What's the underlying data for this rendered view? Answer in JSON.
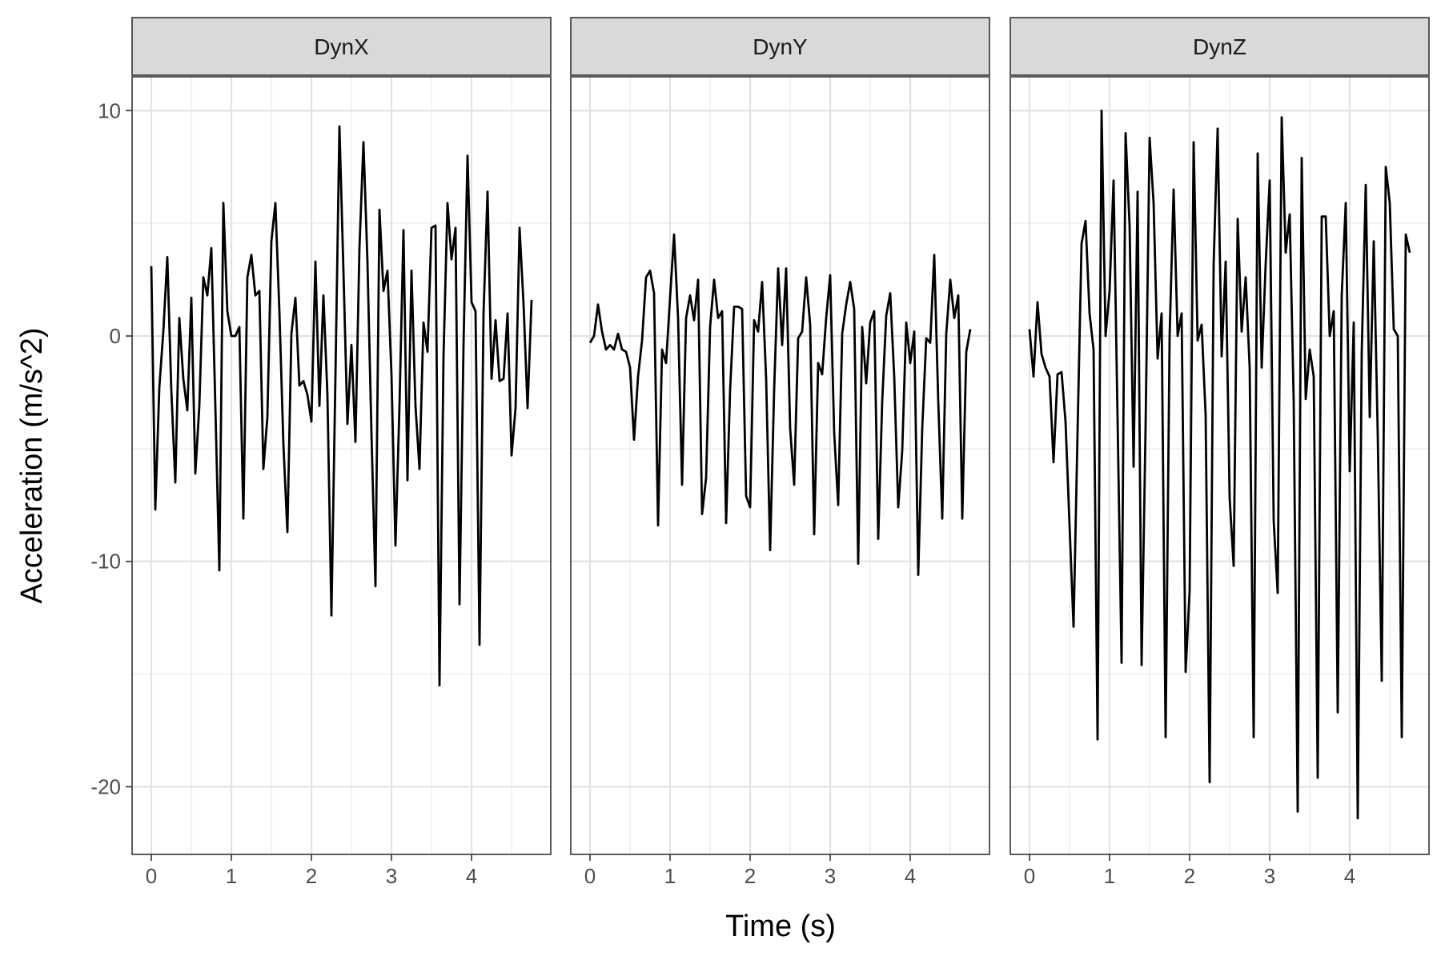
{
  "chart_data": {
    "type": "line",
    "xlabel": "Time (s)",
    "ylabel": "Acceleration (m/s^2)",
    "xlim": [
      -0.24,
      4.99
    ],
    "ylim": [
      -23.0,
      11.5
    ],
    "x_ticks": [
      0,
      1,
      2,
      3,
      4
    ],
    "y_ticks": [
      10,
      0,
      -10,
      -20
    ],
    "grid": true,
    "line_color": "#000000",
    "panels": [
      {
        "name": "DynX",
        "x": [
          0.0,
          0.05,
          0.1,
          0.15,
          0.2,
          0.25,
          0.3,
          0.35,
          0.4,
          0.45,
          0.5,
          0.55,
          0.6,
          0.65,
          0.7,
          0.75,
          0.8,
          0.85,
          0.9,
          0.95,
          1.0,
          1.05,
          1.1,
          1.15,
          1.2,
          1.25,
          1.3,
          1.35,
          1.4,
          1.45,
          1.5,
          1.55,
          1.6,
          1.65,
          1.7,
          1.75,
          1.8,
          1.85,
          1.9,
          1.95,
          2.0,
          2.05,
          2.1,
          2.15,
          2.2,
          2.25,
          2.3,
          2.35,
          2.4,
          2.45,
          2.5,
          2.55,
          2.6,
          2.65,
          2.7,
          2.75,
          2.8,
          2.85,
          2.9,
          2.95,
          3.0,
          3.05,
          3.1,
          3.15,
          3.2,
          3.25,
          3.3,
          3.35,
          3.4,
          3.45,
          3.5,
          3.55,
          3.6,
          3.65,
          3.7,
          3.75,
          3.8,
          3.85,
          3.9,
          3.95,
          4.0,
          4.05,
          4.1,
          4.15,
          4.2,
          4.25,
          4.3,
          4.35,
          4.4,
          4.45,
          4.5,
          4.55,
          4.6,
          4.65,
          4.7,
          4.75
        ],
        "y": [
          3.1,
          -7.7,
          -2.3,
          0.2,
          3.5,
          -2.4,
          -6.5,
          0.8,
          -1.9,
          -3.3,
          1.7,
          -6.1,
          -3.1,
          2.6,
          1.8,
          3.9,
          -3.1,
          -10.4,
          5.9,
          1.1,
          0.0,
          0.0,
          0.4,
          -8.1,
          2.6,
          3.6,
          1.8,
          2.0,
          -5.9,
          -3.6,
          4.2,
          5.9,
          1.1,
          -4.8,
          -8.7,
          0.1,
          1.7,
          -2.2,
          -2.0,
          -2.6,
          -3.8,
          3.3,
          -3.1,
          1.8,
          -2.6,
          -12.4,
          -1.8,
          9.3,
          2.9,
          -3.9,
          -0.4,
          -4.7,
          3.9,
          8.6,
          3.3,
          -4.3,
          -11.1,
          5.6,
          2.0,
          2.9,
          -1.7,
          -9.3,
          -3.1,
          4.7,
          -6.4,
          2.9,
          -3.1,
          -5.9,
          0.6,
          -0.7,
          4.8,
          4.9,
          -15.5,
          -0.9,
          5.9,
          3.4,
          4.8,
          -11.9,
          -0.4,
          8.0,
          1.5,
          1.1,
          -13.7,
          1.0,
          6.4,
          -1.9,
          0.7,
          -2.0,
          -1.9,
          1.0,
          -5.3,
          -3.2,
          4.8,
          1.4,
          -3.2,
          1.6
        ]
      },
      {
        "name": "DynY",
        "x": [
          0.0,
          0.05,
          0.1,
          0.15,
          0.2,
          0.25,
          0.3,
          0.35,
          0.4,
          0.45,
          0.5,
          0.55,
          0.6,
          0.65,
          0.7,
          0.75,
          0.8,
          0.85,
          0.9,
          0.95,
          1.0,
          1.05,
          1.1,
          1.15,
          1.2,
          1.25,
          1.3,
          1.35,
          1.4,
          1.45,
          1.5,
          1.55,
          1.6,
          1.65,
          1.7,
          1.75,
          1.8,
          1.85,
          1.9,
          1.95,
          2.0,
          2.05,
          2.1,
          2.15,
          2.2,
          2.25,
          2.3,
          2.35,
          2.4,
          2.45,
          2.5,
          2.55,
          2.6,
          2.65,
          2.7,
          2.75,
          2.8,
          2.85,
          2.9,
          2.95,
          3.0,
          3.05,
          3.1,
          3.15,
          3.2,
          3.25,
          3.3,
          3.35,
          3.4,
          3.45,
          3.5,
          3.55,
          3.6,
          3.65,
          3.7,
          3.75,
          3.8,
          3.85,
          3.9,
          3.95,
          4.0,
          4.05,
          4.1,
          4.15,
          4.2,
          4.25,
          4.3,
          4.35,
          4.4,
          4.45,
          4.5,
          4.55,
          4.6,
          4.65,
          4.7,
          4.75
        ],
        "y": [
          -0.3,
          0.0,
          1.4,
          0.2,
          -0.6,
          -0.4,
          -0.6,
          0.1,
          -0.6,
          -0.7,
          -1.4,
          -4.6,
          -1.8,
          -0.2,
          2.6,
          2.9,
          1.9,
          -8.4,
          -0.6,
          -1.2,
          1.7,
          4.5,
          0.8,
          -6.6,
          0.8,
          1.8,
          0.7,
          2.5,
          -7.9,
          -6.3,
          0.4,
          2.5,
          0.8,
          1.1,
          -8.3,
          -2.4,
          1.3,
          1.3,
          1.2,
          -7.1,
          -7.6,
          0.7,
          0.2,
          2.4,
          -1.9,
          -9.5,
          -2.4,
          3.0,
          -0.4,
          3.0,
          -4.1,
          -6.6,
          -0.1,
          0.2,
          2.6,
          0.5,
          -8.8,
          -1.2,
          -1.7,
          0.8,
          2.7,
          -4.3,
          -7.5,
          0.1,
          1.4,
          2.4,
          1.2,
          -10.1,
          0.4,
          -2.1,
          0.6,
          1.1,
          -9.0,
          -2.9,
          0.9,
          1.9,
          -1.8,
          -7.6,
          -5.1,
          0.6,
          -1.2,
          0.2,
          -10.6,
          -4.1,
          -0.1,
          -0.3,
          3.6,
          -2.9,
          -8.1,
          0.1,
          2.5,
          0.8,
          1.8,
          -8.1,
          -0.7,
          0.3
        ]
      },
      {
        "name": "DynZ",
        "x": [
          0.0,
          0.05,
          0.1,
          0.15,
          0.2,
          0.25,
          0.3,
          0.35,
          0.4,
          0.45,
          0.5,
          0.55,
          0.6,
          0.65,
          0.7,
          0.75,
          0.8,
          0.85,
          0.9,
          0.95,
          1.0,
          1.05,
          1.1,
          1.15,
          1.2,
          1.25,
          1.3,
          1.35,
          1.4,
          1.45,
          1.5,
          1.55,
          1.6,
          1.65,
          1.7,
          1.75,
          1.8,
          1.85,
          1.9,
          1.95,
          2.0,
          2.05,
          2.1,
          2.15,
          2.2,
          2.25,
          2.3,
          2.35,
          2.4,
          2.45,
          2.5,
          2.55,
          2.6,
          2.65,
          2.7,
          2.75,
          2.8,
          2.85,
          2.9,
          2.95,
          3.0,
          3.05,
          3.1,
          3.15,
          3.2,
          3.25,
          3.3,
          3.35,
          3.4,
          3.45,
          3.5,
          3.55,
          3.6,
          3.65,
          3.7,
          3.75,
          3.8,
          3.85,
          3.9,
          3.95,
          4.0,
          4.05,
          4.1,
          4.15,
          4.2,
          4.25,
          4.3,
          4.35,
          4.4,
          4.45,
          4.5,
          4.55,
          4.6,
          4.65,
          4.7,
          4.75
        ],
        "y": [
          0.3,
          -1.8,
          1.5,
          -0.8,
          -1.4,
          -1.8,
          -5.6,
          -1.7,
          -1.6,
          -3.8,
          -8.4,
          -12.9,
          -4.3,
          4.1,
          5.1,
          1.0,
          -0.6,
          -17.9,
          10.0,
          0.0,
          2.0,
          6.9,
          -3.7,
          -14.5,
          9.0,
          4.9,
          -5.8,
          6.4,
          -14.6,
          -4.0,
          8.8,
          5.9,
          -1.0,
          1.0,
          -17.8,
          0.0,
          6.5,
          0.0,
          1.0,
          -14.9,
          -11.3,
          8.6,
          -0.2,
          0.5,
          -3.5,
          -19.8,
          3.2,
          9.2,
          -0.9,
          3.3,
          -7.2,
          -10.2,
          5.2,
          0.2,
          2.6,
          -1.4,
          -17.8,
          8.1,
          -1.4,
          3.2,
          6.9,
          -8.2,
          -11.4,
          9.7,
          3.7,
          5.4,
          -2.9,
          -21.1,
          7.9,
          -2.8,
          -0.6,
          -1.8,
          -19.6,
          5.3,
          5.3,
          0.0,
          1.1,
          -16.7,
          1.8,
          5.9,
          -6.0,
          0.6,
          -21.4,
          -0.7,
          6.7,
          -3.6,
          4.2,
          -4.4,
          -15.3,
          7.5,
          5.9,
          0.3,
          0.0,
          -17.8,
          4.5,
          3.7
        ]
      }
    ]
  }
}
